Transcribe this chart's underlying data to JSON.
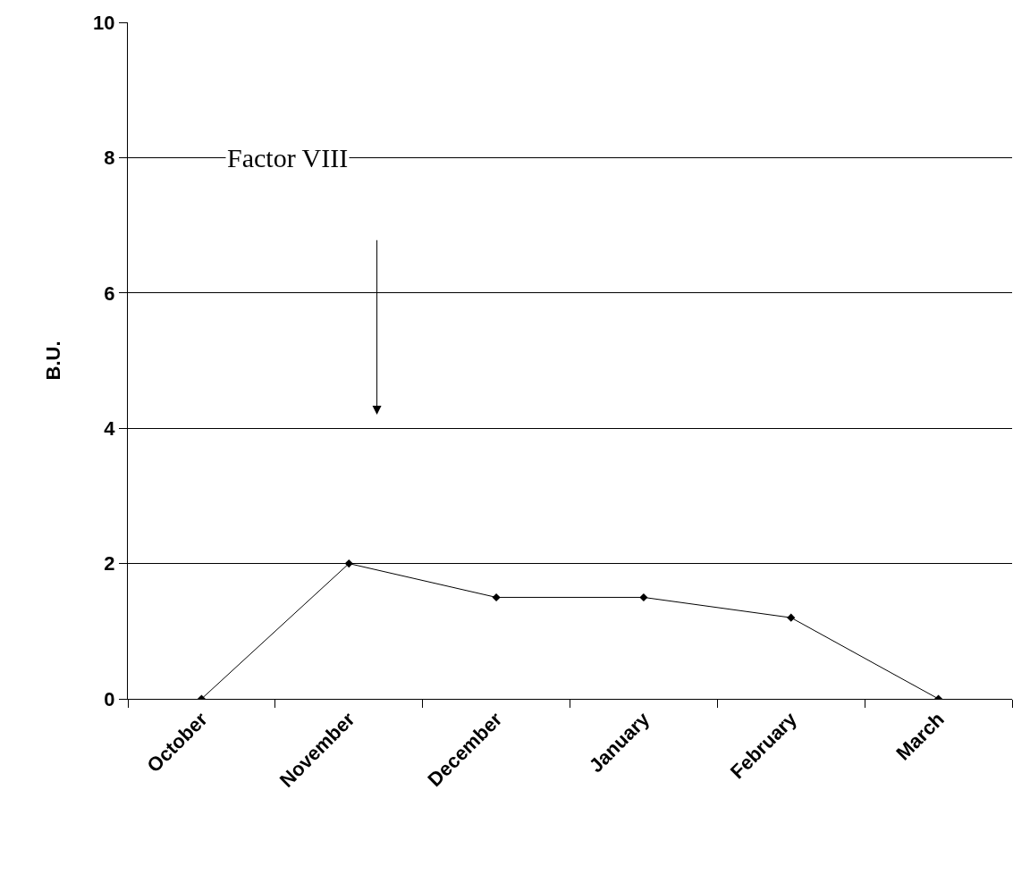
{
  "chart_data": {
    "type": "line",
    "ylabel": "B.U.",
    "categories": [
      "October",
      "November",
      "December",
      "January",
      "February",
      "March"
    ],
    "series": [
      {
        "color": "#000000",
        "values": [
          0,
          2,
          1.5,
          1.5,
          1.2,
          0
        ]
      }
    ],
    "ylim": [
      0,
      10
    ],
    "yticks": [
      0,
      2,
      4,
      6,
      8,
      10
    ],
    "grid": "y",
    "marker": "diamond",
    "line_style": "solid",
    "annotations": [
      "Factor VIII"
    ]
  }
}
